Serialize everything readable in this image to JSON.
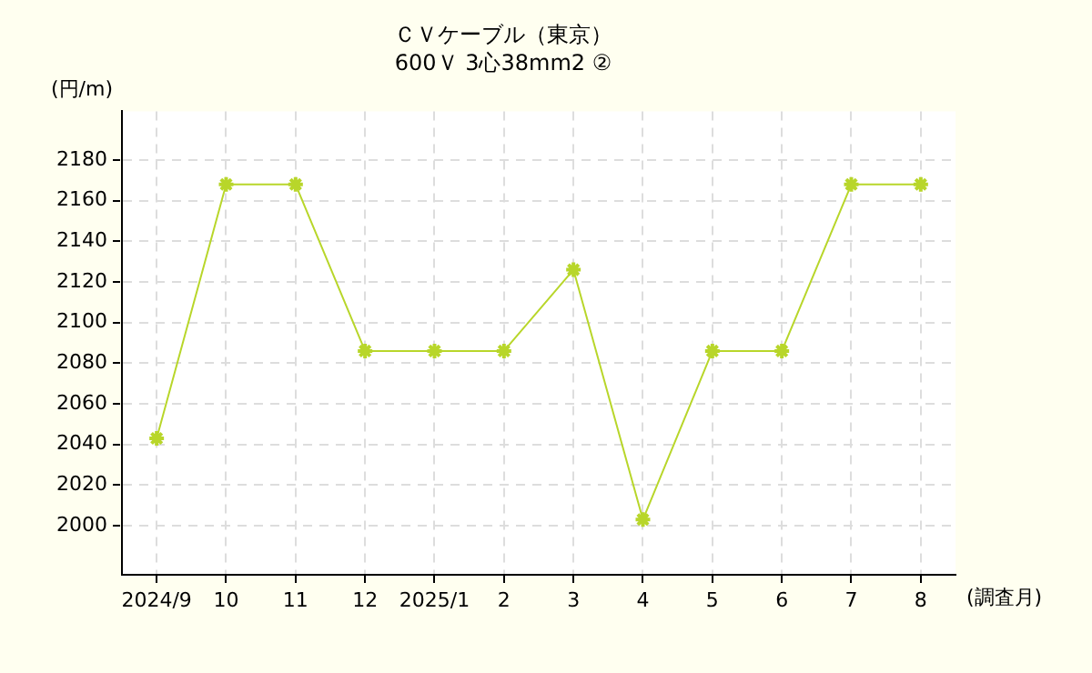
{
  "chart_data": {
    "type": "line",
    "title": [
      "ＣＶケーブル（東京）",
      "600Ｖ 3心38mm2 ②"
    ],
    "ylabel": "(円/m)",
    "xlabel": "(調査月)",
    "categories": [
      "2024/9",
      "10",
      "11",
      "12",
      "2025/1",
      "2",
      "3",
      "4",
      "5",
      "6",
      "7",
      "8"
    ],
    "series": [
      {
        "color": "#b8d62a",
        "values": [
          2043,
          2168,
          2168,
          2086,
          2086,
          2086,
          2126,
          2003,
          2086,
          2086,
          2168,
          2168
        ]
      }
    ],
    "ylim": [
      1976,
      2204
    ],
    "yticks": [
      2000,
      2020,
      2040,
      2060,
      2080,
      2100,
      2120,
      2140,
      2160,
      2180
    ],
    "grid": true,
    "legend": false,
    "marker": "cross",
    "line_style": "solid"
  }
}
